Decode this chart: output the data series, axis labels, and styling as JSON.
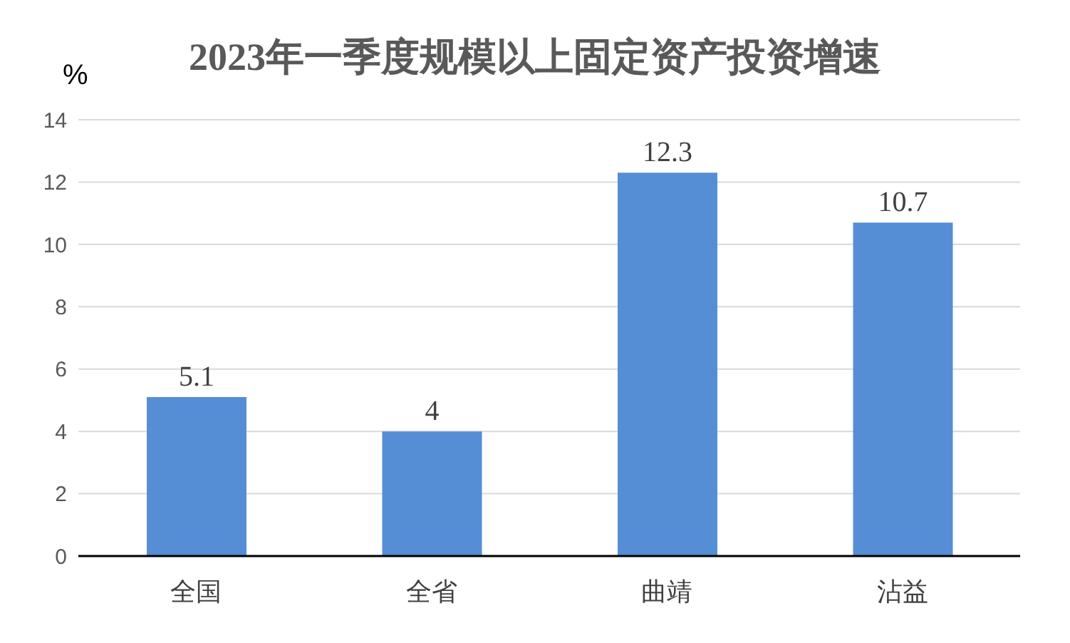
{
  "chart_data": {
    "type": "bar",
    "title": "2023年一季度规模以上固定资产投资增速",
    "ylabel": "%",
    "categories": [
      "全国",
      "全省",
      "曲靖",
      "沾益"
    ],
    "values": [
      5.1,
      4,
      12.3,
      10.7
    ],
    "color": "#558ed5",
    "ylim": [
      0,
      14
    ],
    "yticks": [
      0,
      2,
      4,
      6,
      8,
      10,
      12,
      14
    ],
    "grid": "y",
    "data_labels": true,
    "legend": false
  }
}
